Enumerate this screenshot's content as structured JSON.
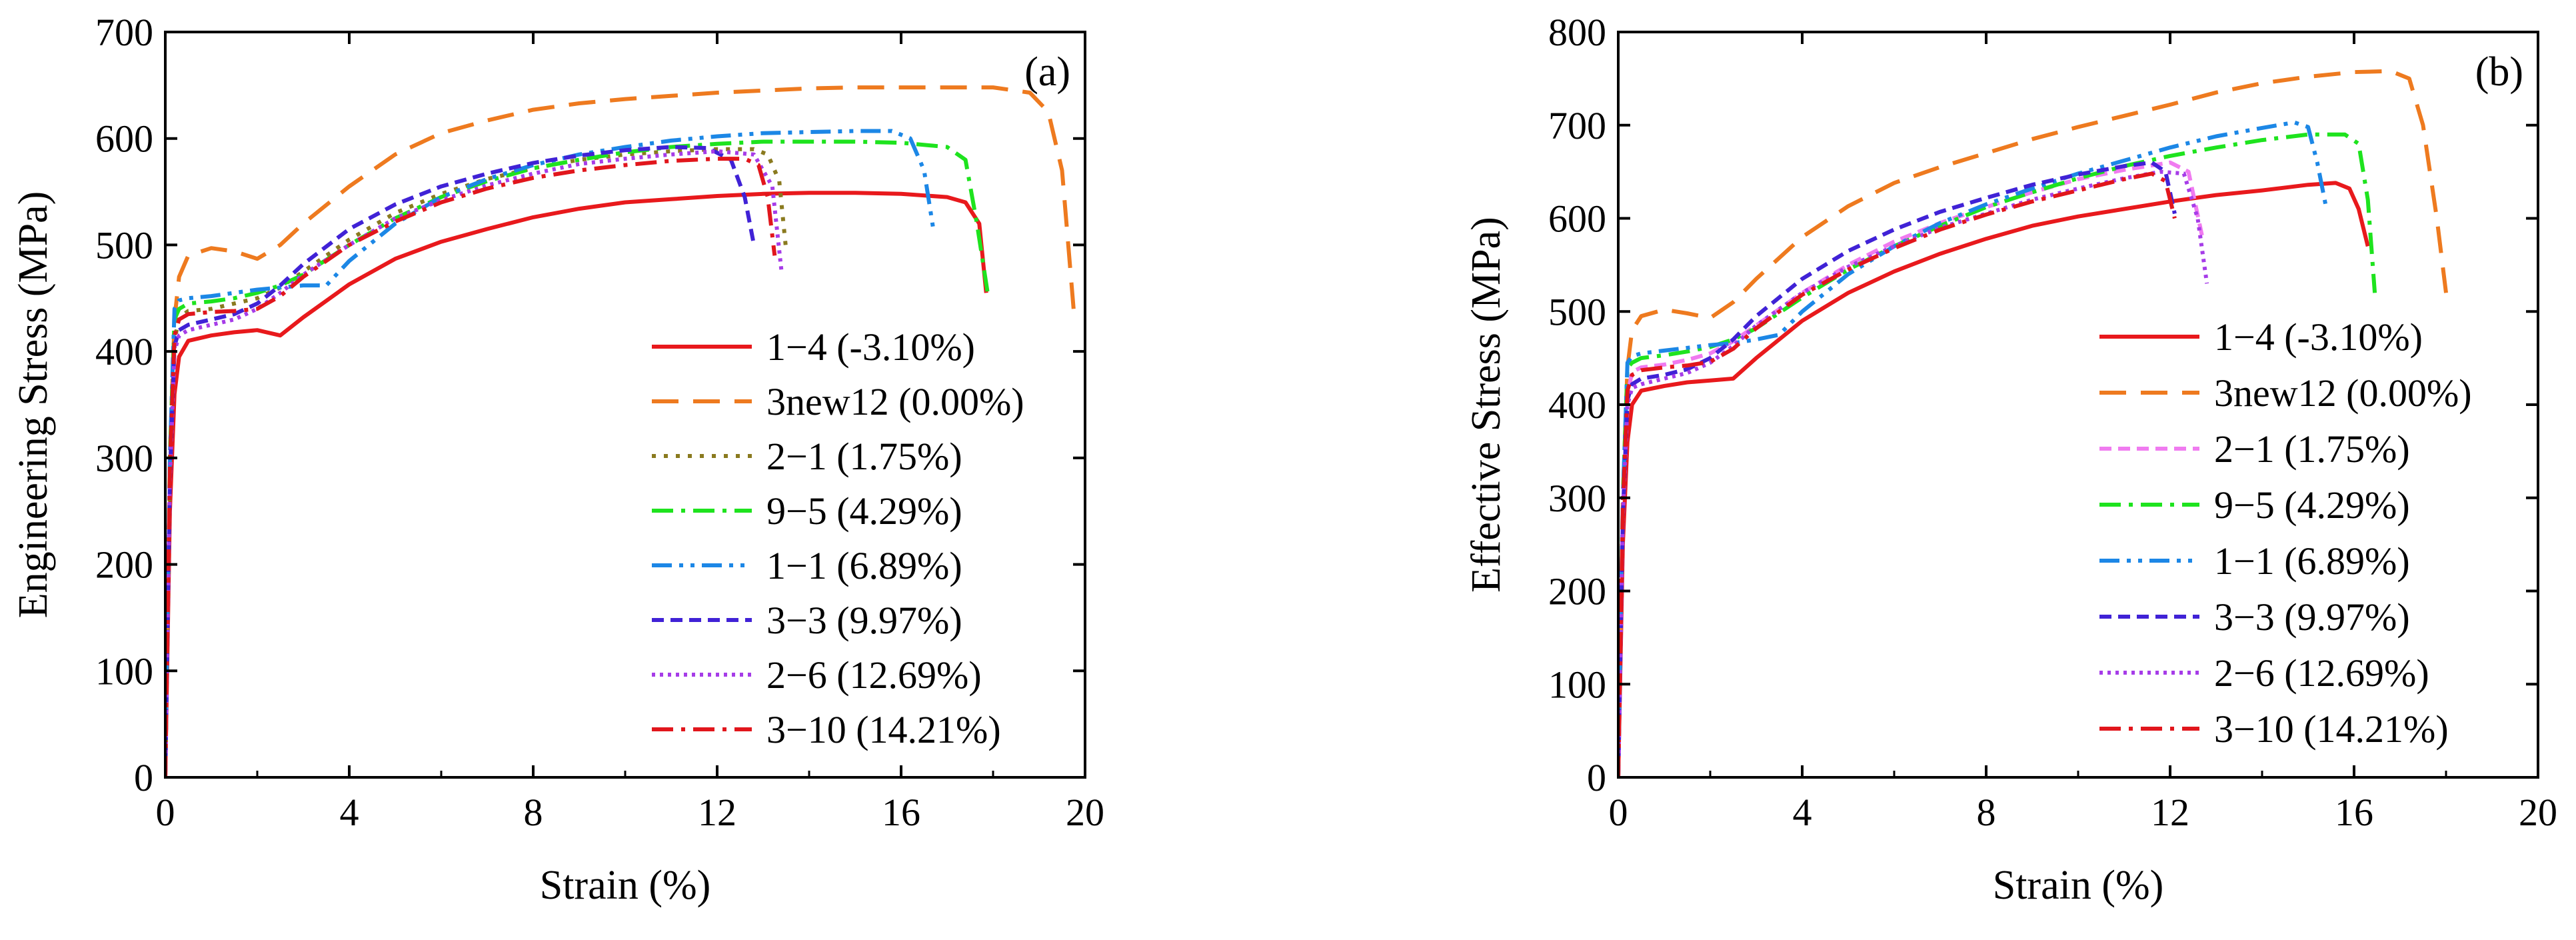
{
  "chart_data": [
    {
      "type": "line",
      "panel_label": "(a)",
      "xlabel": "Strain (%)",
      "ylabel": "Engineering Stress (MPa)",
      "xlim": [
        0,
        20
      ],
      "ylim": [
        0,
        700
      ],
      "xticks": [
        0,
        4,
        8,
        12,
        16,
        20
      ],
      "yticks": [
        0,
        100,
        200,
        300,
        400,
        500,
        600,
        700
      ],
      "legend_position": "bottom-right",
      "series": [
        {
          "name": "1−4 (-3.10%)",
          "color": "#e8191c",
          "dash": "solid",
          "x": [
            0,
            0.1,
            0.2,
            0.3,
            0.5,
            1.0,
            1.5,
            2.0,
            2.5,
            3.0,
            4.0,
            5.0,
            6.0,
            7.0,
            8.0,
            9.0,
            10.0,
            11.0,
            12.0,
            13.0,
            14.0,
            15.0,
            16.0,
            17.0,
            17.4,
            17.7,
            17.85
          ],
          "y": [
            0,
            250,
            360,
            395,
            410,
            415,
            418,
            420,
            415,
            432,
            463,
            487,
            503,
            515,
            526,
            534,
            540,
            543,
            546,
            548,
            549,
            549,
            548,
            545,
            540,
            520,
            455
          ]
        },
        {
          "name": "3new12 (0.00%)",
          "color": "#ee7a1f",
          "dash": "long-dash",
          "x": [
            0,
            0.1,
            0.2,
            0.3,
            0.5,
            1.0,
            1.5,
            2.0,
            2.5,
            3.0,
            4.0,
            5.0,
            6.0,
            7.0,
            8.0,
            9.0,
            10.0,
            11.0,
            12.0,
            13.0,
            14.0,
            15.0,
            16.0,
            17.0,
            18.0,
            18.8,
            19.2,
            19.5,
            19.75
          ],
          "y": [
            0,
            300,
            430,
            470,
            490,
            497,
            494,
            487,
            500,
            520,
            555,
            585,
            605,
            617,
            627,
            633,
            637,
            640,
            643,
            645,
            647,
            648,
            648,
            648,
            648,
            643,
            625,
            570,
            440
          ]
        },
        {
          "name": "2−1 (1.75%)",
          "color": "#8a7a1f",
          "dash": "dot",
          "x": [
            0,
            0.1,
            0.2,
            0.3,
            0.5,
            1.0,
            1.5,
            2.0,
            2.5,
            3.0,
            4.0,
            5.0,
            6.0,
            7.0,
            8.0,
            9.0,
            10.0,
            11.0,
            12.0,
            12.8,
            13.1,
            13.35,
            13.5
          ],
          "y": [
            0,
            280,
            410,
            432,
            438,
            440,
            445,
            450,
            460,
            475,
            505,
            530,
            548,
            562,
            572,
            580,
            585,
            588,
            590,
            590,
            585,
            560,
            495
          ]
        },
        {
          "name": "9−5 (4.29%)",
          "color": "#1ee31e",
          "dash": "dash-dot",
          "x": [
            0,
            0.1,
            0.2,
            0.3,
            0.5,
            1.0,
            1.5,
            2.0,
            2.5,
            3.0,
            4.0,
            5.0,
            6.0,
            7.0,
            8.0,
            9.0,
            10.0,
            11.0,
            12.0,
            13.0,
            14.0,
            15.0,
            16.0,
            17.0,
            17.4,
            17.65,
            17.9
          ],
          "y": [
            0,
            300,
            430,
            440,
            445,
            447,
            450,
            455,
            462,
            472,
            500,
            525,
            545,
            560,
            572,
            580,
            587,
            592,
            595,
            597,
            597,
            597,
            596,
            592,
            580,
            520,
            450
          ]
        },
        {
          "name": "1−1 (6.89%)",
          "color": "#1c87e6",
          "dash": "dash-dot-dot",
          "x": [
            0,
            0.1,
            0.2,
            0.3,
            0.5,
            1.0,
            1.5,
            2.0,
            2.5,
            3.0,
            3.5,
            4.0,
            5.0,
            6.0,
            7.0,
            8.0,
            9.0,
            10.0,
            11.0,
            12.0,
            13.0,
            14.0,
            15.0,
            15.8,
            16.2,
            16.5,
            16.7
          ],
          "y": [
            0,
            300,
            440,
            448,
            450,
            452,
            455,
            458,
            460,
            462,
            462,
            485,
            520,
            545,
            562,
            575,
            585,
            592,
            598,
            602,
            605,
            606,
            607,
            607,
            600,
            570,
            515
          ]
        },
        {
          "name": "3−3 (9.97%)",
          "color": "#4022d6",
          "dash": "short-dash",
          "x": [
            0,
            0.1,
            0.2,
            0.3,
            0.5,
            1.0,
            1.5,
            2.0,
            2.5,
            3.0,
            4.0,
            5.0,
            6.0,
            7.0,
            8.0,
            9.0,
            10.0,
            11.0,
            11.8,
            12.3,
            12.6,
            12.8
          ],
          "y": [
            0,
            280,
            405,
            420,
            425,
            430,
            435,
            445,
            462,
            482,
            515,
            538,
            555,
            567,
            577,
            584,
            589,
            592,
            591,
            580,
            545,
            500
          ]
        },
        {
          "name": "2−6 (12.69%)",
          "color": "#a63ce8",
          "dash": "dense-dot",
          "x": [
            0,
            0.1,
            0.2,
            0.3,
            0.5,
            1.0,
            1.5,
            2.0,
            2.5,
            3.0,
            4.0,
            5.0,
            6.0,
            7.0,
            8.0,
            9.0,
            10.0,
            11.0,
            12.0,
            12.8,
            13.2,
            13.4
          ],
          "y": [
            0,
            280,
            400,
            415,
            420,
            425,
            430,
            440,
            455,
            472,
            500,
            525,
            542,
            556,
            567,
            576,
            581,
            585,
            588,
            585,
            555,
            475
          ]
        },
        {
          "name": "3−10 (14.21%)",
          "color": "#e1161c",
          "dash": "dash-dot",
          "x": [
            0,
            0.1,
            0.2,
            0.3,
            0.5,
            1.0,
            1.5,
            2.0,
            2.5,
            3.0,
            4.0,
            5.0,
            6.0,
            7.0,
            8.0,
            9.0,
            10.0,
            11.0,
            12.0,
            12.6,
            12.9,
            13.1,
            13.25
          ],
          "y": [
            0,
            290,
            415,
            430,
            435,
            437,
            438,
            440,
            452,
            470,
            500,
            522,
            540,
            553,
            563,
            570,
            575,
            579,
            581,
            581,
            575,
            545,
            490
          ]
        }
      ]
    },
    {
      "type": "line",
      "panel_label": "(b)",
      "xlabel": "Strain (%)",
      "ylabel": "Effective Stress (MPa)",
      "xlim": [
        0,
        20
      ],
      "ylim": [
        0,
        800
      ],
      "xticks": [
        0,
        4,
        8,
        12,
        16,
        20
      ],
      "yticks": [
        0,
        100,
        200,
        300,
        400,
        500,
        600,
        700,
        800
      ],
      "legend_position": "bottom-right",
      "series": [
        {
          "name": "1−4 (-3.10%)",
          "color": "#e8191c",
          "dash": "solid",
          "x": [
            0,
            0.1,
            0.2,
            0.3,
            0.5,
            1.0,
            1.5,
            2.0,
            2.5,
            3.0,
            4.0,
            5.0,
            6.0,
            7.0,
            8.0,
            9.0,
            10.0,
            11.0,
            12.0,
            13.0,
            14.0,
            15.0,
            15.6,
            15.9,
            16.1,
            16.3
          ],
          "y": [
            0,
            250,
            360,
            400,
            415,
            420,
            424,
            426,
            428,
            450,
            490,
            520,
            543,
            562,
            578,
            592,
            602,
            610,
            618,
            625,
            630,
            636,
            638,
            632,
            610,
            570
          ]
        },
        {
          "name": "3new12 (0.00%)",
          "color": "#ee7a1f",
          "dash": "long-dash",
          "x": [
            0,
            0.1,
            0.2,
            0.3,
            0.5,
            1.0,
            1.5,
            2.0,
            2.5,
            3.0,
            4.0,
            5.0,
            6.0,
            7.0,
            8.0,
            9.0,
            10.0,
            11.0,
            12.0,
            13.0,
            14.0,
            15.0,
            16.0,
            16.8,
            17.2,
            17.5,
            17.8,
            18.0
          ],
          "y": [
            0,
            300,
            440,
            480,
            495,
            502,
            498,
            493,
            510,
            535,
            580,
            613,
            638,
            655,
            670,
            685,
            698,
            710,
            722,
            735,
            745,
            752,
            757,
            758,
            750,
            700,
            600,
            520
          ]
        },
        {
          "name": "2−1 (1.75%)",
          "color": "#f07bf0",
          "dash": "short-dash",
          "x": [
            0,
            0.1,
            0.2,
            0.3,
            0.5,
            1.0,
            1.5,
            2.0,
            2.5,
            3.0,
            4.0,
            5.0,
            6.0,
            7.0,
            8.0,
            9.0,
            10.0,
            11.0,
            12.0,
            12.4,
            12.7
          ],
          "y": [
            0,
            280,
            410,
            435,
            440,
            443,
            448,
            455,
            468,
            485,
            520,
            550,
            575,
            595,
            612,
            628,
            642,
            652,
            660,
            650,
            580
          ]
        },
        {
          "name": "9−5 (4.29%)",
          "color": "#1ee31e",
          "dash": "dash-dot",
          "x": [
            0,
            0.1,
            0.2,
            0.3,
            0.5,
            1.0,
            1.5,
            2.0,
            2.5,
            3.0,
            4.0,
            5.0,
            6.0,
            7.0,
            8.0,
            9.0,
            10.0,
            11.0,
            12.0,
            13.0,
            14.0,
            15.0,
            15.8,
            16.1,
            16.3,
            16.45
          ],
          "y": [
            0,
            300,
            440,
            445,
            450,
            453,
            457,
            462,
            470,
            482,
            515,
            545,
            570,
            592,
            612,
            628,
            643,
            656,
            667,
            676,
            684,
            690,
            690,
            680,
            620,
            520
          ]
        },
        {
          "name": "1−1 (6.89%)",
          "color": "#1c87e6",
          "dash": "dash-dot-dot",
          "x": [
            0,
            0.1,
            0.2,
            0.3,
            0.5,
            1.0,
            1.5,
            2.0,
            2.5,
            3.0,
            3.5,
            4.0,
            5.0,
            6.0,
            7.0,
            8.0,
            9.0,
            10.0,
            11.0,
            12.0,
            13.0,
            14.0,
            14.7,
            15.0,
            15.2,
            15.4
          ],
          "y": [
            0,
            300,
            445,
            452,
            455,
            458,
            461,
            464,
            466,
            470,
            475,
            500,
            540,
            570,
            595,
            615,
            632,
            648,
            662,
            676,
            688,
            697,
            703,
            698,
            660,
            610
          ]
        },
        {
          "name": "3−3 (9.97%)",
          "color": "#4022d6",
          "dash": "short-dash",
          "x": [
            0,
            0.1,
            0.2,
            0.3,
            0.5,
            1.0,
            1.5,
            2.0,
            2.5,
            3.0,
            4.0,
            5.0,
            6.0,
            7.0,
            8.0,
            9.0,
            10.0,
            11.0,
            11.6,
            11.9,
            12.1
          ],
          "y": [
            0,
            280,
            405,
            422,
            428,
            432,
            438,
            450,
            470,
            495,
            535,
            565,
            588,
            607,
            622,
            636,
            647,
            656,
            660,
            650,
            605
          ]
        },
        {
          "name": "2−6 (12.69%)",
          "color": "#a63ce8",
          "dash": "dense-dot",
          "x": [
            0,
            0.1,
            0.2,
            0.3,
            0.5,
            1.0,
            1.5,
            2.0,
            2.5,
            3.0,
            4.0,
            5.0,
            6.0,
            7.0,
            8.0,
            9.0,
            10.0,
            11.0,
            11.8,
            12.3,
            12.6,
            12.8
          ],
          "y": [
            0,
            280,
            400,
            418,
            422,
            428,
            434,
            445,
            463,
            485,
            520,
            548,
            570,
            590,
            605,
            620,
            632,
            643,
            650,
            648,
            600,
            530
          ]
        },
        {
          "name": "3−10 (14.21%)",
          "color": "#e1161c",
          "dash": "dash-dot",
          "x": [
            0,
            0.1,
            0.2,
            0.3,
            0.5,
            1.0,
            1.5,
            2.0,
            2.5,
            3.0,
            4.0,
            5.0,
            6.0,
            7.0,
            8.0,
            9.0,
            10.0,
            11.0,
            11.6,
            11.9,
            12.1
          ],
          "y": [
            0,
            290,
            415,
            432,
            437,
            440,
            442,
            446,
            460,
            482,
            518,
            545,
            568,
            588,
            604,
            618,
            630,
            642,
            648,
            640,
            600
          ]
        }
      ]
    }
  ]
}
